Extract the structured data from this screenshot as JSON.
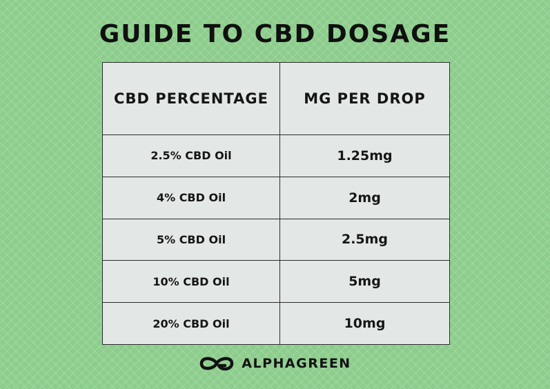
{
  "title": "GUIDE TO CBD DOSAGE",
  "table": {
    "headers": [
      "CBD PERCENTAGE",
      "MG PER DROP"
    ],
    "rows": [
      {
        "percentage": "2.5% CBD Oil",
        "mg_per_drop": "1.25mg"
      },
      {
        "percentage": "4% CBD Oil",
        "mg_per_drop": "2mg"
      },
      {
        "percentage": "5% CBD Oil",
        "mg_per_drop": "2.5mg"
      },
      {
        "percentage": "10% CBD Oil",
        "mg_per_drop": "5mg"
      },
      {
        "percentage": "20% CBD Oil",
        "mg_per_drop": "10mg"
      }
    ]
  },
  "brand": {
    "name": "ALPHAGREEN",
    "logo_icon": "infinity-g-logo-icon"
  },
  "colors": {
    "background": "#8ccd8c",
    "table_fill": "#e3e8e6",
    "text": "#121212",
    "border": "#2a2a2a"
  }
}
